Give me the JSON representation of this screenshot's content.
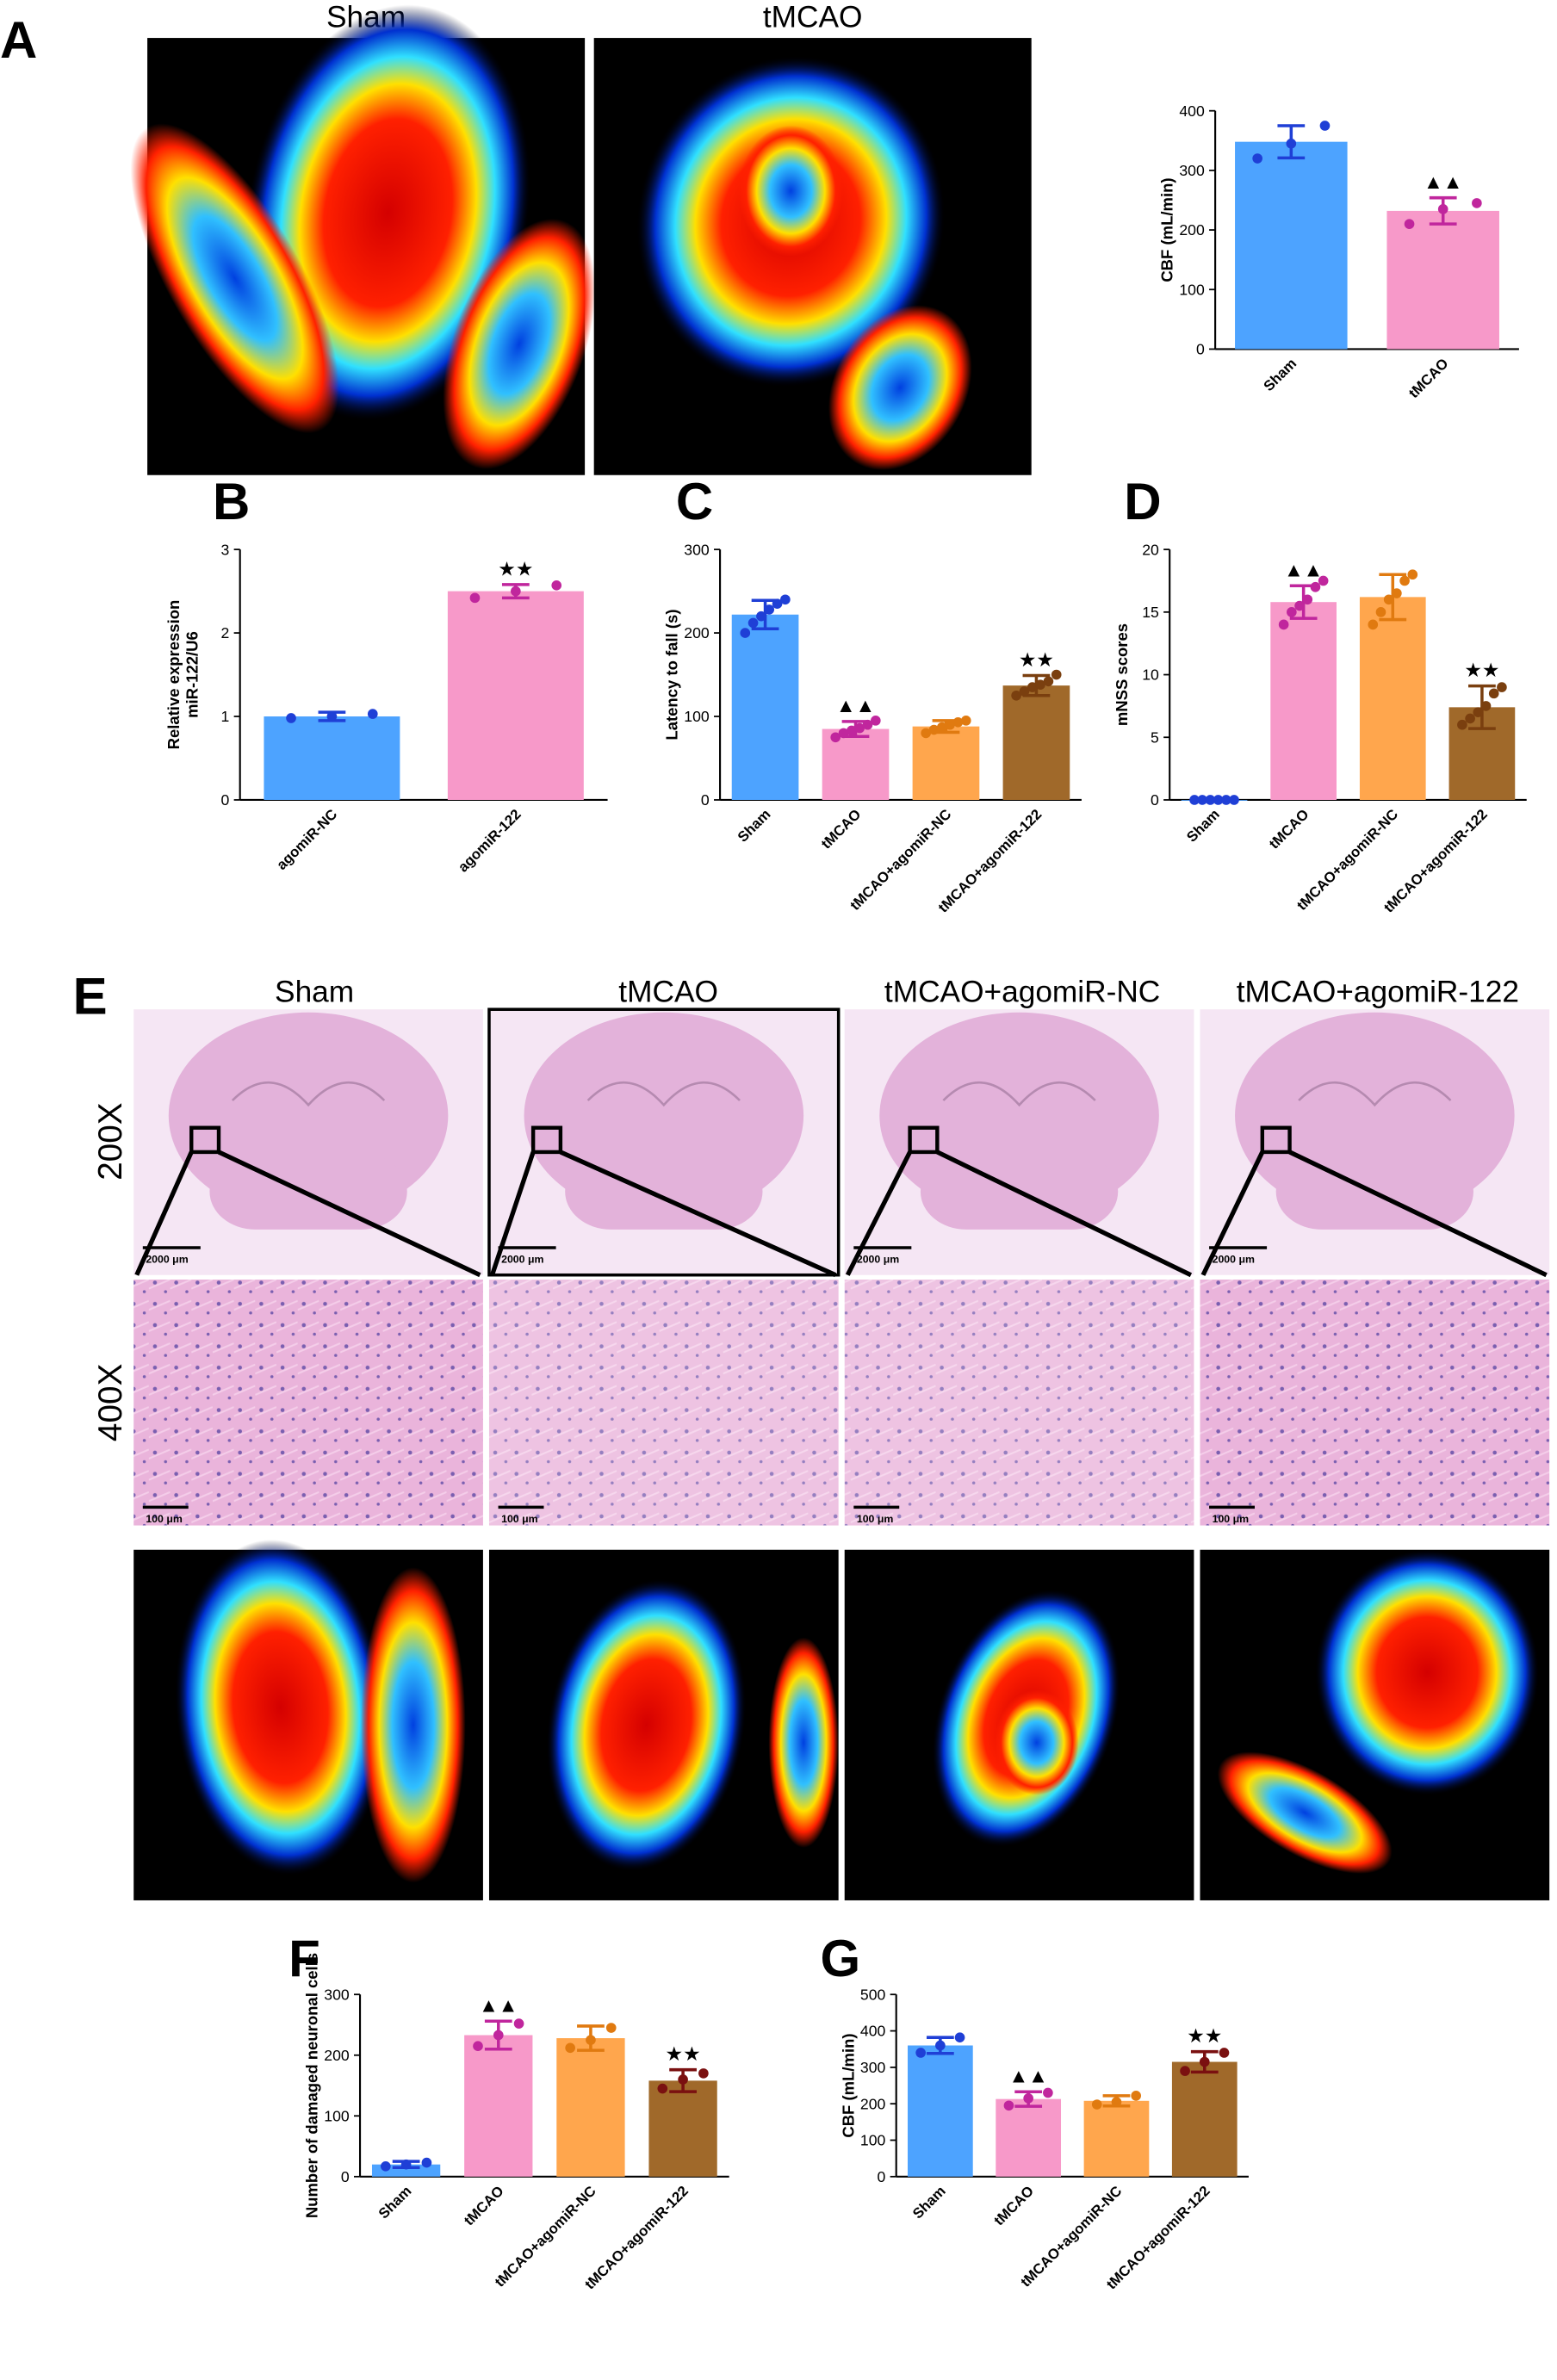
{
  "panels": [
    "A",
    "B",
    "C",
    "D",
    "E",
    "F",
    "G"
  ],
  "speckle_titles": [
    "Sham",
    "tMCAO"
  ],
  "histology": {
    "columns": [
      "Sham",
      "tMCAO",
      "tMCAO+agomiR-NC",
      "tMCAO+agomiR-122"
    ],
    "rows": [
      "200X",
      "400X"
    ],
    "scale_bars_200x": [
      "2000 μm",
      "2000 μm",
      "2000 μm",
      "2000 μm"
    ],
    "scale_bars_400x": [
      "100 μm",
      "100 μm",
      "100 μm",
      "100 μm"
    ]
  },
  "chart_data": [
    {
      "type": "bar",
      "ylabel": [
        "CBF (mL/min)"
      ],
      "categories": [
        "Sham",
        "tMCAO"
      ],
      "values": [
        348,
        232
      ],
      "errors": [
        27,
        22
      ],
      "colors": [
        "#4da3ff",
        "#f799c9"
      ],
      "point_colors": [
        "#1f3fd6",
        "#c0269d"
      ],
      "points": [
        [
          320,
          345,
          375
        ],
        [
          210,
          235,
          245
        ]
      ],
      "annotations": [
        null,
        "▲▲"
      ],
      "ylim": [
        0,
        400
      ],
      "yticks": [
        0,
        100,
        200,
        300,
        400
      ]
    },
    {
      "type": "bar",
      "ylabel": [
        "Relative expression",
        "miR-122/U6"
      ],
      "categories": [
        "agomiR-NC",
        "agomiR-122"
      ],
      "values": [
        1.0,
        2.5
      ],
      "errors": [
        0.05,
        0.08
      ],
      "colors": [
        "#4da3ff",
        "#f799c9"
      ],
      "point_colors": [
        "#1f3fd6",
        "#c0269d"
      ],
      "points": [
        [
          0.98,
          1.0,
          1.03
        ],
        [
          2.42,
          2.5,
          2.57
        ]
      ],
      "annotations": [
        null,
        "★★"
      ],
      "ylim": [
        0,
        3
      ],
      "yticks": [
        0,
        1,
        2,
        3
      ]
    },
    {
      "type": "bar",
      "ylabel": [
        "Latency to fall (s)"
      ],
      "categories": [
        "Sham",
        "tMCAO",
        "tMCAO+agomiR-NC",
        "tMCAO+agomiR-122"
      ],
      "values": [
        222,
        85,
        88,
        137
      ],
      "errors": [
        17,
        9,
        7,
        12
      ],
      "colors": [
        "#4da3ff",
        "#f799c9",
        "#ffa64d",
        "#a0692a"
      ],
      "point_colors": [
        "#1f3fd6",
        "#c0269d",
        "#e07a10",
        "#7a3f0f"
      ],
      "points": [
        [
          200,
          212,
          220,
          228,
          235,
          240
        ],
        [
          75,
          80,
          83,
          86,
          90,
          95
        ],
        [
          80,
          84,
          87,
          90,
          93,
          95
        ],
        [
          125,
          130,
          135,
          138,
          142,
          150
        ]
      ],
      "annotations": [
        null,
        "▲▲",
        null,
        "★★"
      ],
      "ylim": [
        0,
        300
      ],
      "yticks": [
        0,
        100,
        200,
        300
      ]
    },
    {
      "type": "bar",
      "ylabel": [
        "mNSS scores"
      ],
      "categories": [
        "Sham",
        "tMCAO",
        "tMCAO+agomiR-NC",
        "tMCAO+agomiR-122"
      ],
      "values": [
        0,
        15.8,
        16.2,
        7.4
      ],
      "errors": [
        0.05,
        1.3,
        1.8,
        1.7
      ],
      "colors": [
        "#4da3ff",
        "#f799c9",
        "#ffa64d",
        "#a0692a"
      ],
      "point_colors": [
        "#1f3fd6",
        "#c0269d",
        "#e07a10",
        "#7a3f0f"
      ],
      "points": [
        [
          0,
          0,
          0,
          0,
          0,
          0
        ],
        [
          14,
          15,
          15.5,
          16,
          17,
          17.5
        ],
        [
          14,
          15,
          16,
          16.5,
          17.5,
          18
        ],
        [
          6,
          6.5,
          7,
          7.5,
          8.5,
          9
        ]
      ],
      "annotations": [
        null,
        "▲▲",
        null,
        "★★"
      ],
      "ylim": [
        0,
        20
      ],
      "yticks": [
        0,
        5,
        10,
        15,
        20
      ]
    },
    {
      "type": "bar",
      "ylabel": [
        "Number of damaged neuronal cells"
      ],
      "categories": [
        "Sham",
        "tMCAO",
        "tMCAO+agomiR-NC",
        "tMCAO+agomiR-122"
      ],
      "values": [
        20,
        233,
        228,
        158
      ],
      "errors": [
        5,
        23,
        20,
        18
      ],
      "colors": [
        "#4da3ff",
        "#f799c9",
        "#ffa64d",
        "#a0692a"
      ],
      "point_colors": [
        "#1f3fd6",
        "#c0269d",
        "#e07a10",
        "#7a1010"
      ],
      "points": [
        [
          17,
          20,
          23
        ],
        [
          215,
          233,
          252
        ],
        [
          212,
          225,
          245
        ],
        [
          145,
          160,
          170
        ]
      ],
      "annotations": [
        null,
        "▲▲",
        null,
        "★★"
      ],
      "ylim": [
        0,
        300
      ],
      "yticks": [
        0,
        100,
        200,
        300
      ]
    },
    {
      "type": "bar",
      "ylabel": [
        "CBF (mL/min)"
      ],
      "categories": [
        "Sham",
        "tMCAO",
        "tMCAO+agomiR-NC",
        "tMCAO+agomiR-122"
      ],
      "values": [
        360,
        213,
        208,
        315
      ],
      "errors": [
        22,
        20,
        14,
        28
      ],
      "colors": [
        "#4da3ff",
        "#f799c9",
        "#ffa64d",
        "#a0692a"
      ],
      "point_colors": [
        "#1f3fd6",
        "#c0269d",
        "#e07a10",
        "#7a1010"
      ],
      "points": [
        [
          340,
          360,
          382
        ],
        [
          195,
          215,
          230
        ],
        [
          198,
          205,
          222
        ],
        [
          290,
          315,
          340
        ]
      ],
      "annotations": [
        null,
        "▲▲",
        null,
        "★★"
      ],
      "ylim": [
        0,
        500
      ],
      "yticks": [
        0,
        100,
        200,
        300,
        400,
        500
      ]
    }
  ]
}
